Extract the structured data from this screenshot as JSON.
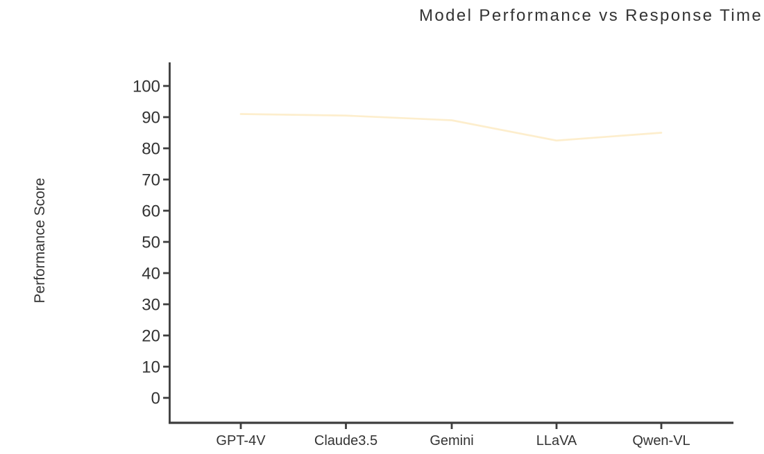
{
  "chart_data": {
    "type": "line",
    "title": "Model Performance vs Response Time",
    "ylabel": "Performance Score",
    "xlabel": "",
    "categories": [
      "GPT-4V",
      "Claude3.5",
      "Gemini",
      "LLaVA",
      "Qwen-VL"
    ],
    "series": [
      {
        "name": "Performance Score",
        "values": [
          91,
          90.5,
          89,
          82.5,
          85
        ],
        "color": "#fdeecd"
      }
    ],
    "y_ticks": [
      0,
      10,
      20,
      30,
      40,
      50,
      60,
      70,
      80,
      90,
      100
    ],
    "ylim": [
      0,
      100
    ],
    "grid": false,
    "legend_position": "none",
    "colors": {
      "line": "#fdeecd",
      "axis": "#3d3d3d",
      "text": "#333333",
      "background": "#ffffff"
    }
  }
}
